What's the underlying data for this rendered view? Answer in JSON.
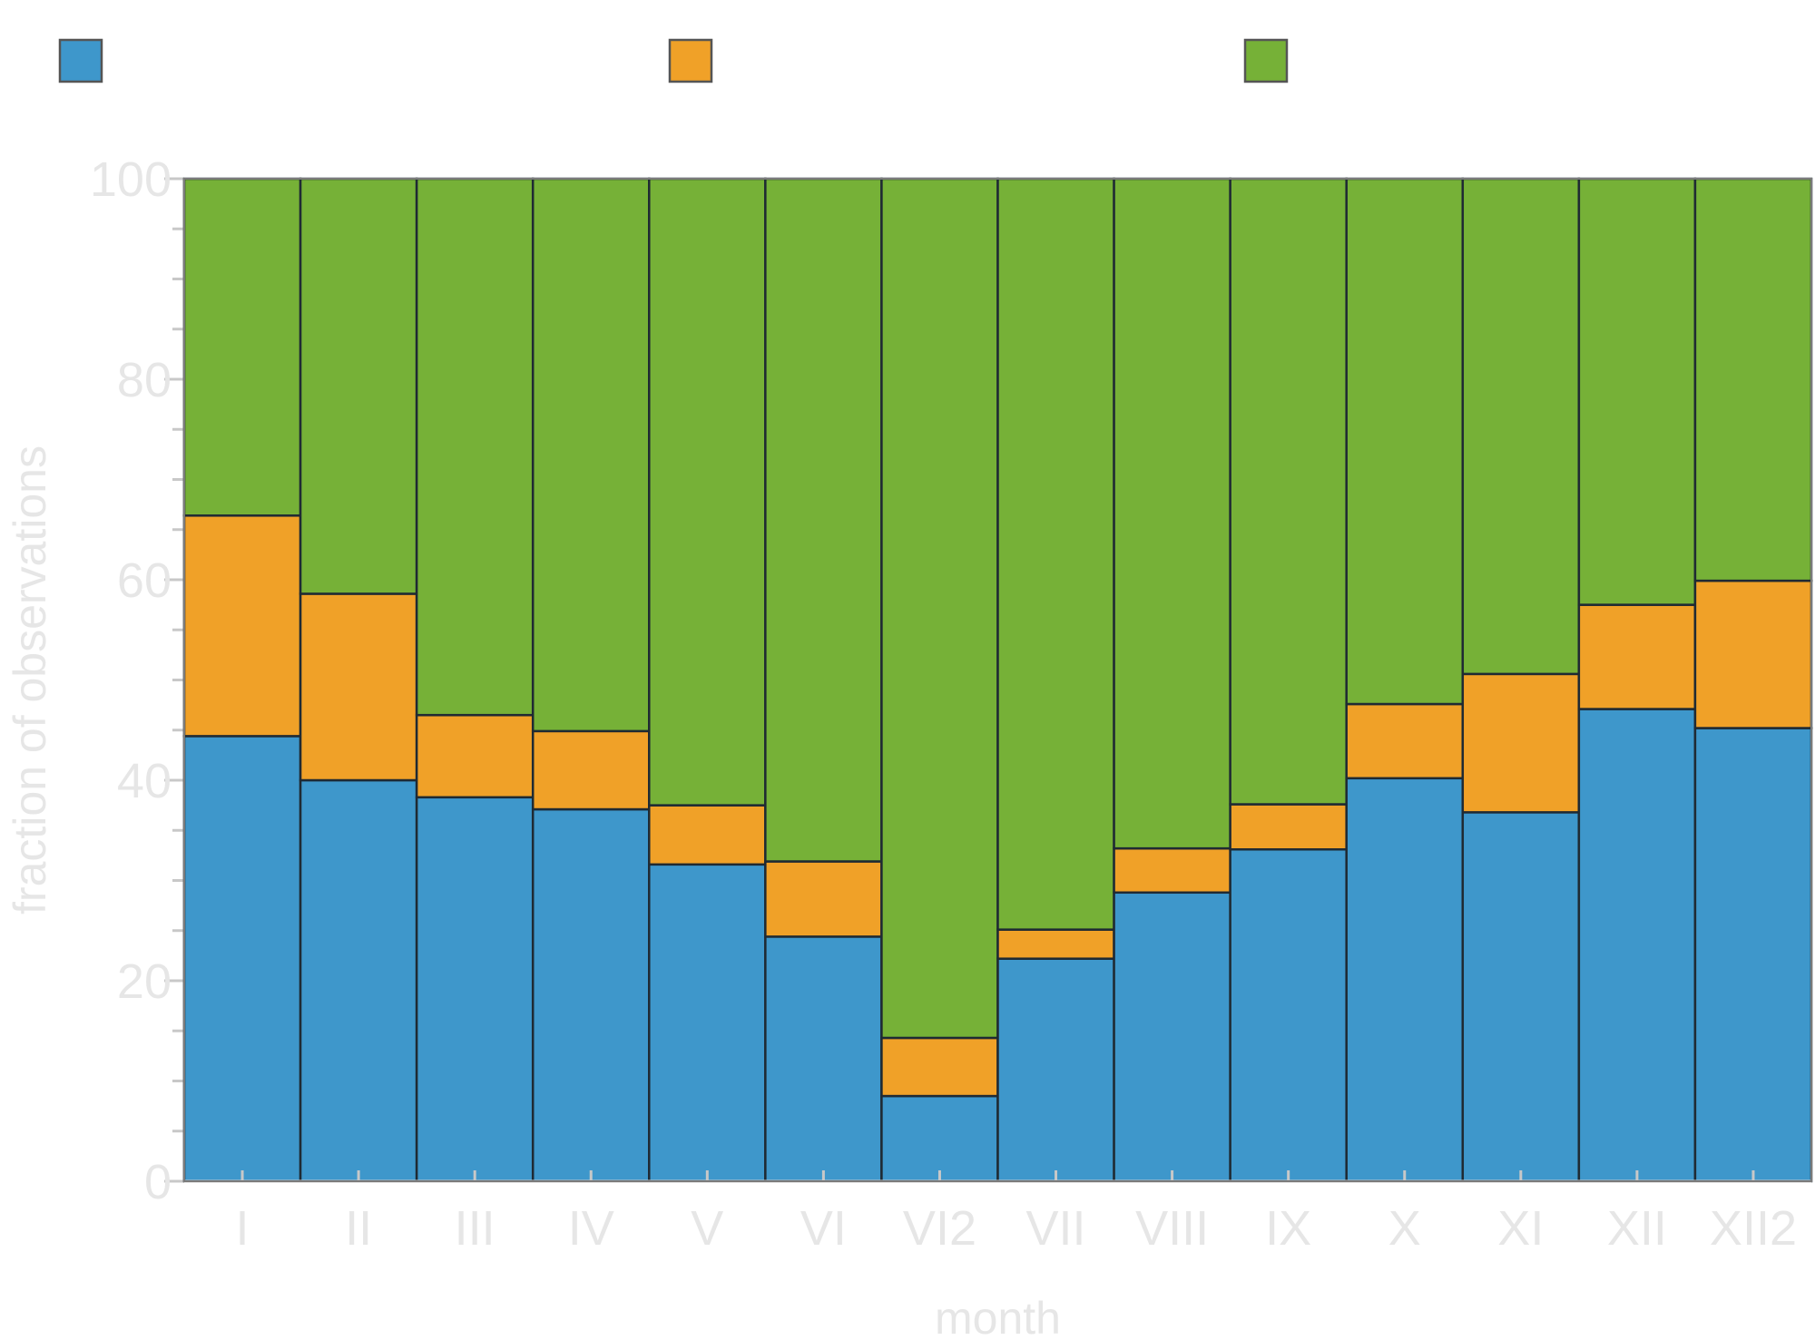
{
  "chart_data": {
    "type": "bar",
    "stacked": true,
    "title": "",
    "xlabel": "month",
    "ylabel": "fraction of observations",
    "ylim": [
      0,
      100
    ],
    "y_ticks": [
      0,
      20,
      40,
      60,
      80,
      100
    ],
    "y_minor_step": 5,
    "grid": false,
    "legend_position": "top",
    "categories": [
      "I",
      "II",
      "III",
      "IV",
      "V",
      "VI",
      "VI2",
      "VII",
      "VIII",
      "IX",
      "X",
      "XI",
      "XII",
      "XII2"
    ],
    "series": [
      {
        "color": "#3e97cb",
        "values": [
          44.4,
          40.0,
          38.3,
          37.1,
          31.6,
          24.4,
          8.5,
          22.2,
          28.8,
          33.1,
          40.2,
          36.8,
          47.1,
          45.2
        ]
      },
      {
        "color": "#f0a128",
        "values": [
          22.0,
          18.6,
          8.2,
          7.8,
          5.9,
          7.5,
          5.8,
          2.9,
          4.4,
          4.5,
          7.4,
          13.8,
          10.4,
          14.7
        ]
      },
      {
        "color": "#76b137",
        "values": [
          33.6,
          41.4,
          53.5,
          55.1,
          62.5,
          68.1,
          85.7,
          74.9,
          66.8,
          62.4,
          52.4,
          49.4,
          42.5,
          40.1
        ]
      }
    ],
    "colors": {
      "bar_outline": "#1f2a33",
      "axis": "#c8c8c8",
      "axis_text": "#e6e6e6",
      "frame": "#7a7a7a"
    }
  }
}
